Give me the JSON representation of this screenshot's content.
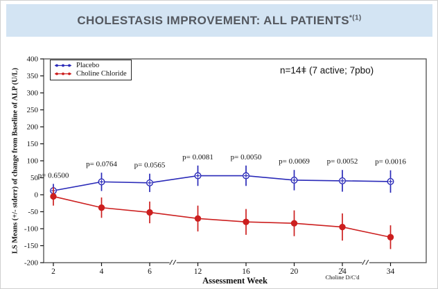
{
  "header": {
    "title": "CHOLESTASIS IMPROVEMENT: ALL PATIENTS",
    "superscript": "*(1)",
    "bg_color": "#d3e4f3",
    "text_color": "#54585f"
  },
  "annotation": {
    "n_text": "n=14ǂ (7 active; 7pbo)"
  },
  "chart_data": {
    "type": "line",
    "title": "",
    "xlabel": "Assessment Week",
    "ylabel": "LS Means (+/- stderr) of change from Baseline of ALP (U/L)",
    "categories": [
      2,
      4,
      6,
      12,
      16,
      20,
      24,
      34
    ],
    "ylim": [
      -200,
      400
    ],
    "ytick_step": 50,
    "grid": false,
    "legend_position": "top-left",
    "axis_breaks_after": [
      6,
      24
    ],
    "series": [
      {
        "name": "Placebo",
        "color": "#2929b8",
        "marker": "circle-plus",
        "values": [
          12,
          38,
          35,
          56,
          56,
          43,
          41,
          39
        ],
        "stderr": [
          20,
          27,
          27,
          30,
          30,
          30,
          32,
          33
        ]
      },
      {
        "name": "Choline Chloride",
        "color": "#cc1f1f",
        "marker": "filled-circle",
        "values": [
          -5,
          -38,
          -52,
          -70,
          -80,
          -84,
          -95,
          -125
        ],
        "stderr": [
          27,
          30,
          32,
          38,
          38,
          38,
          40,
          35
        ]
      }
    ],
    "p_values": [
      "p= 0.6500",
      "p= 0.0764",
      "p= 0.0565",
      "p= 0.0081",
      "p= 0.0050",
      "p= 0.0069",
      "p= 0.0052",
      "p= 0.0016"
    ],
    "x_annotation": {
      "arrow": "↑",
      "label": "Choline D/C'd",
      "at_category": 24
    }
  }
}
